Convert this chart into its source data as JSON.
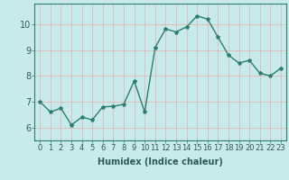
{
  "x": [
    0,
    1,
    2,
    3,
    4,
    5,
    6,
    7,
    8,
    9,
    10,
    11,
    12,
    13,
    14,
    15,
    16,
    17,
    18,
    19,
    20,
    21,
    22,
    23
  ],
  "y": [
    7.0,
    6.6,
    6.75,
    6.1,
    6.4,
    6.3,
    6.8,
    6.82,
    6.9,
    7.8,
    6.6,
    9.1,
    9.82,
    9.7,
    9.9,
    10.32,
    10.2,
    9.5,
    8.8,
    8.5,
    8.6,
    8.1,
    8.0,
    8.3
  ],
  "xlabel": "Humidex (Indice chaleur)",
  "ylim": [
    5.5,
    10.8
  ],
  "xlim": [
    -0.5,
    23.5
  ],
  "yticks": [
    6,
    7,
    8,
    9,
    10
  ],
  "xticks": [
    0,
    1,
    2,
    3,
    4,
    5,
    6,
    7,
    8,
    9,
    10,
    11,
    12,
    13,
    14,
    15,
    16,
    17,
    18,
    19,
    20,
    21,
    22,
    23
  ],
  "line_color": "#2d7d6e",
  "bg_color": "#c8eaea",
  "grid_color": "#e0b8b8",
  "marker": "*",
  "marker_size": 3,
  "tick_fontsize": 6,
  "xlabel_fontsize": 7
}
